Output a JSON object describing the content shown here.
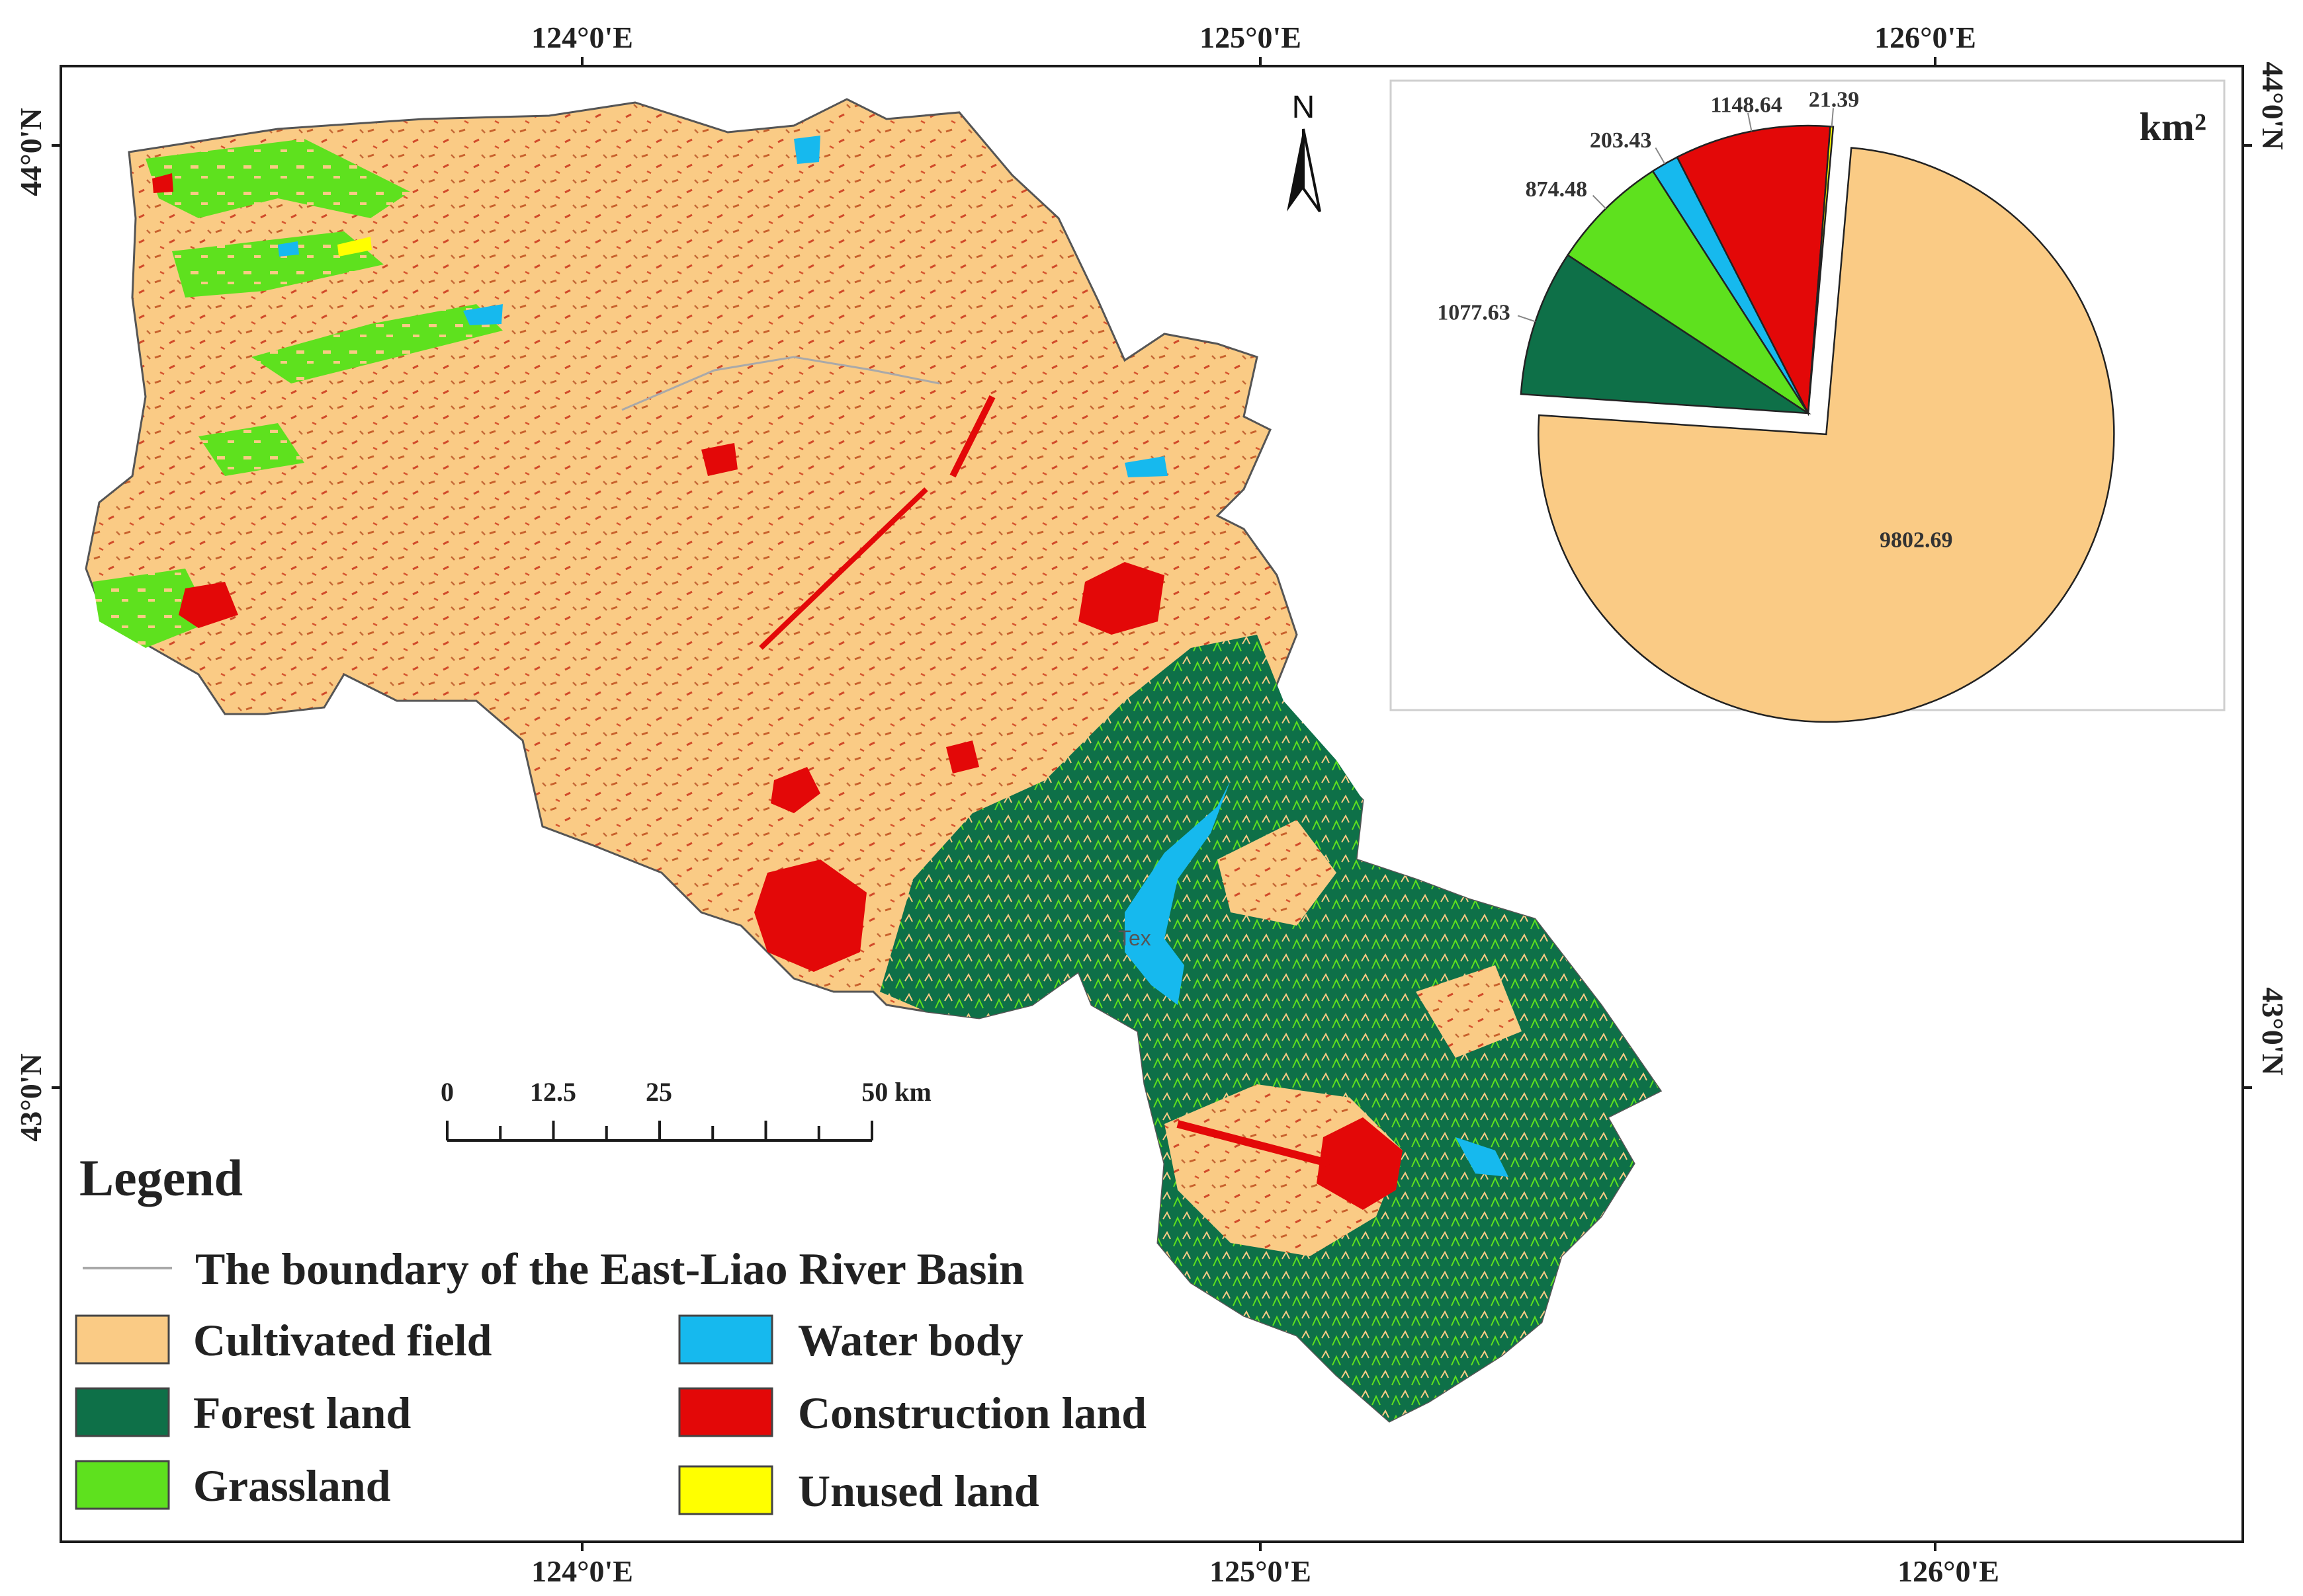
{
  "map": {
    "lon_ticks": [
      "124°0'E",
      "125°0'E",
      "126°0'E"
    ],
    "lat_ticks": [
      "44°0'N",
      "43°0'N"
    ],
    "north_label": "N",
    "place_label": "Tex",
    "colors": {
      "cultivated": "#FACB85",
      "forest": "#0E7048",
      "grassland": "#5EE11E",
      "water": "#16B9EE",
      "construction": "#E30808",
      "unused": "#FFFF00",
      "boundary": "#A9A9A9"
    }
  },
  "scale_bar": {
    "labels": [
      "0",
      "12.5",
      "25",
      "50 km"
    ],
    "values_km": [
      0,
      12.5,
      25,
      50
    ]
  },
  "legend": {
    "title": "Legend",
    "boundary_label": "The boundary of the East-Liao River Basin",
    "items": [
      {
        "label": "Cultivated field",
        "color": "#FACB85"
      },
      {
        "label": "Water body",
        "color": "#16B9EE"
      },
      {
        "label": "Forest land",
        "color": "#0E7048"
      },
      {
        "label": "Construction land",
        "color": "#E30808"
      },
      {
        "label": "Grassland",
        "color": "#5EE11E"
      },
      {
        "label": "Unused land",
        "color": "#FFFF00"
      }
    ]
  },
  "chart_data": {
    "type": "pie",
    "unit": "km²",
    "slices": [
      {
        "label": "9802.69",
        "value": 9802.69,
        "color": "#FACB85",
        "exploded": true
      },
      {
        "label": "1077.63",
        "value": 1077.63,
        "color": "#0E7048",
        "exploded": false
      },
      {
        "label": "874.48",
        "value": 874.48,
        "color": "#5EE11E",
        "exploded": false
      },
      {
        "label": "203.43",
        "value": 203.43,
        "color": "#16B9EE",
        "exploded": false
      },
      {
        "label": "1148.64",
        "value": 1148.64,
        "color": "#E30808",
        "exploded": false
      },
      {
        "label": "21.39",
        "value": 21.39,
        "color": "#FFFF00",
        "exploded": false
      }
    ]
  }
}
